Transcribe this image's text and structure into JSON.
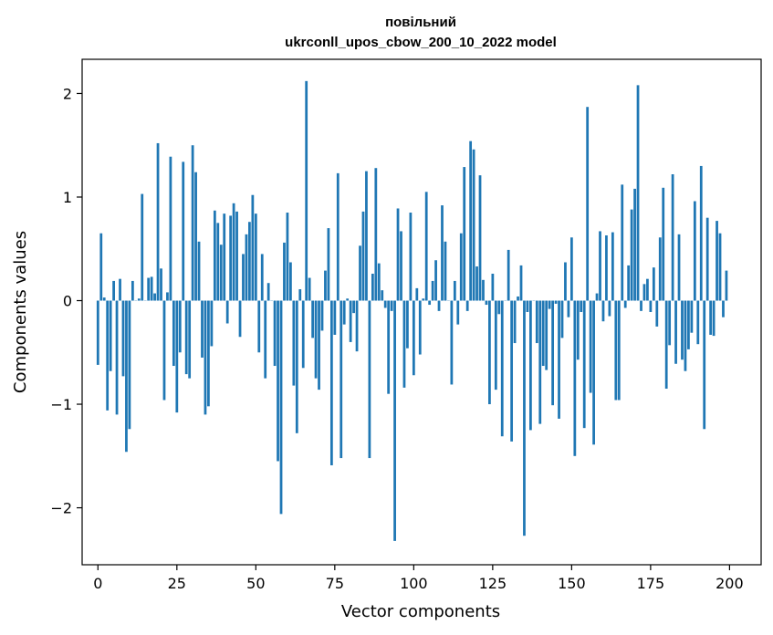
{
  "chart_data": {
    "type": "bar",
    "title_line1": "повільний",
    "title_line2": "ukrconll_upos_cbow_200_10_2022 model",
    "xlabel": "Vector components",
    "ylabel": "Components values",
    "xlim": [
      -5,
      210
    ],
    "ylim": [
      -2.55,
      2.33
    ],
    "x_ticks": [
      0,
      25,
      50,
      75,
      100,
      125,
      150,
      175,
      200
    ],
    "y_ticks": [
      -2,
      -1,
      0,
      1,
      2
    ],
    "y_tick_labels": [
      "−2",
      "−1",
      "0",
      "1",
      "2"
    ],
    "bar_color": "#1f77b4",
    "grid": false,
    "values": [
      -0.62,
      0.65,
      0.03,
      -1.06,
      -0.68,
      0.19,
      -1.1,
      0.21,
      -0.73,
      -1.46,
      -1.24,
      0.19,
      0.0,
      0.02,
      1.03,
      0.0,
      0.22,
      0.23,
      0.07,
      1.52,
      0.31,
      -0.96,
      0.08,
      1.39,
      -0.63,
      -1.08,
      -0.5,
      1.34,
      -0.71,
      -0.75,
      1.5,
      1.24,
      0.57,
      -0.55,
      -1.1,
      -1.02,
      -0.44,
      0.87,
      0.75,
      0.54,
      0.84,
      -0.22,
      0.82,
      0.94,
      0.86,
      -0.35,
      0.45,
      0.64,
      0.76,
      1.02,
      0.84,
      -0.5,
      0.45,
      -0.75,
      0.17,
      0.0,
      -0.63,
      -1.55,
      -2.06,
      0.56,
      0.85,
      0.37,
      -0.82,
      -1.28,
      0.11,
      -0.65,
      2.12,
      0.22,
      -0.36,
      -0.75,
      -0.86,
      -0.29,
      0.29,
      0.7,
      -1.59,
      -0.33,
      1.23,
      -1.52,
      -0.23,
      0.02,
      -0.4,
      -0.12,
      -0.49,
      0.53,
      0.86,
      1.25,
      -1.52,
      0.26,
      1.28,
      0.36,
      0.1,
      -0.07,
      -0.9,
      -0.1,
      -2.32,
      0.89,
      0.67,
      -0.84,
      -0.46,
      0.85,
      -0.72,
      0.12,
      -0.52,
      0.02,
      1.05,
      -0.04,
      0.19,
      0.39,
      -0.1,
      0.92,
      0.57,
      0.0,
      -0.81,
      0.19,
      -0.23,
      0.65,
      1.29,
      -0.1,
      1.54,
      1.46,
      0.33,
      1.21,
      0.2,
      -0.04,
      -1.0,
      0.26,
      -0.86,
      -0.13,
      -1.31,
      0.0,
      0.49,
      -1.36,
      -0.41,
      0.04,
      0.34,
      -2.27,
      -0.11,
      -1.25,
      0.0,
      -0.41,
      -1.19,
      -0.63,
      -0.67,
      -0.08,
      -1.01,
      -0.03,
      -1.14,
      -0.36,
      0.37,
      -0.16,
      0.61,
      -1.5,
      -0.57,
      -0.11,
      -1.23,
      1.87,
      -0.89,
      -1.39,
      0.07,
      0.67,
      -0.2,
      0.63,
      -0.15,
      0.66,
      -0.96,
      -0.96,
      1.12,
      -0.07,
      0.34,
      0.88,
      1.08,
      2.08,
      -0.1,
      0.16,
      0.21,
      -0.11,
      0.32,
      -0.25,
      0.61,
      1.09,
      -0.85,
      -0.43,
      1.22,
      -0.61,
      0.64,
      -0.57,
      -0.68,
      -0.47,
      -0.31,
      0.96,
      -0.42,
      1.3,
      -1.24,
      0.8,
      -0.33,
      -0.34,
      0.77,
      0.65,
      -0.16,
      0.29
    ]
  }
}
